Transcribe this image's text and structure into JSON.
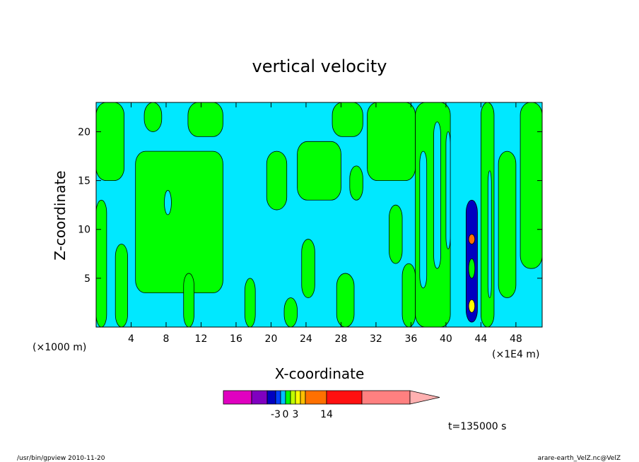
{
  "chart_data": {
    "type": "heatmap",
    "title": "vertical velocity",
    "xlabel": "X-coordinate",
    "ylabel": "Z-coordinate",
    "x_unit_left": "(×1000 m)",
    "x_unit_right": "(×1E4 m)",
    "xlim": [
      0,
      51
    ],
    "ylim": [
      0,
      23
    ],
    "x_ticks": [
      4,
      8,
      12,
      16,
      20,
      24,
      28,
      32,
      36,
      40,
      44,
      48
    ],
    "y_ticks": [
      5,
      10,
      15,
      20
    ],
    "time_label": "t=135000 s",
    "colorbar": {
      "ticks": [
        {
          "label": "-3",
          "index": 3
        },
        {
          "label": "0",
          "index": 5
        },
        {
          "label": "3",
          "index": 7
        },
        {
          "label": "14",
          "index": 10
        }
      ],
      "colors": [
        "#e000c0",
        "#8000c0",
        "#0000c0",
        "#0040ff",
        "#00c0ff",
        "#00ff00",
        "#c0ff00",
        "#ffff00",
        "#ffc000",
        "#ff7000",
        "#ff1010",
        "#ff8080",
        "#ffb0b0"
      ]
    },
    "field_colors": {
      "negative_weak": "#00e8ff",
      "positive_weak": "#00ff00",
      "positive_mid": "#ffff00",
      "positive_strong": "#ff7000",
      "negative_strong": "#0000c0"
    },
    "green_regions": [
      {
        "x0": 0.0,
        "x1": 3.2,
        "z0": 15.0,
        "z1": 23.0
      },
      {
        "x0": 0.0,
        "x1": 1.2,
        "z0": 0.0,
        "z1": 13.0
      },
      {
        "x0": 2.2,
        "x1": 3.6,
        "z0": 0.0,
        "z1": 8.5
      },
      {
        "x0": 5.5,
        "x1": 7.5,
        "z0": 20.0,
        "z1": 23.0
      },
      {
        "x0": 10.5,
        "x1": 14.5,
        "z0": 19.5,
        "z1": 23.0
      },
      {
        "x0": 4.5,
        "x1": 14.5,
        "z0": 3.5,
        "z1": 18.0
      },
      {
        "x0": 10.0,
        "x1": 11.2,
        "z0": 0.0,
        "z1": 5.5
      },
      {
        "x0": 17.0,
        "x1": 18.2,
        "z0": 0.0,
        "z1": 5.0
      },
      {
        "x0": 19.5,
        "x1": 21.8,
        "z0": 12.0,
        "z1": 18.0
      },
      {
        "x0": 21.5,
        "x1": 23.0,
        "z0": 0.0,
        "z1": 3.0
      },
      {
        "x0": 23.0,
        "x1": 28.0,
        "z0": 13.0,
        "z1": 19.0
      },
      {
        "x0": 23.5,
        "x1": 25.0,
        "z0": 3.0,
        "z1": 9.0
      },
      {
        "x0": 27.0,
        "x1": 30.5,
        "z0": 19.5,
        "z1": 23.0
      },
      {
        "x0": 29.0,
        "x1": 30.5,
        "z0": 13.0,
        "z1": 16.5
      },
      {
        "x0": 27.5,
        "x1": 29.5,
        "z0": 0.0,
        "z1": 5.5
      },
      {
        "x0": 31.0,
        "x1": 36.5,
        "z0": 15.0,
        "z1": 23.0
      },
      {
        "x0": 33.5,
        "x1": 35.0,
        "z0": 6.5,
        "z1": 12.5
      },
      {
        "x0": 35.0,
        "x1": 36.5,
        "z0": 0.0,
        "z1": 6.5
      },
      {
        "x0": 36.5,
        "x1": 40.5,
        "z0": 0.0,
        "z1": 23.0
      },
      {
        "x0": 44.0,
        "x1": 45.5,
        "z0": 0.0,
        "z1": 23.0
      },
      {
        "x0": 46.0,
        "x1": 48.0,
        "z0": 3.0,
        "z1": 18.0
      },
      {
        "x0": 48.5,
        "x1": 51.0,
        "z0": 6.0,
        "z1": 23.0
      }
    ],
    "cyan_holes": [
      {
        "x0": 7.8,
        "x1": 8.6,
        "z0": 11.5,
        "z1": 14.0
      },
      {
        "x0": 37.0,
        "x1": 37.8,
        "z0": 4.0,
        "z1": 18.0
      },
      {
        "x0": 38.6,
        "x1": 39.4,
        "z0": 6.0,
        "z1": 21.0
      },
      {
        "x0": 40.0,
        "x1": 40.5,
        "z0": 8.0,
        "z1": 20.0
      },
      {
        "x0": 44.8,
        "x1": 45.2,
        "z0": 3.0,
        "z1": 16.0
      }
    ],
    "updraft_core": [
      {
        "x0": 42.3,
        "x1": 43.6,
        "z0": 0.5,
        "z1": 13.0,
        "level": "negative_strong"
      },
      {
        "x0": 42.6,
        "x1": 43.3,
        "z0": 8.5,
        "z1": 9.5,
        "level": "positive_strong"
      },
      {
        "x0": 42.6,
        "x1": 43.3,
        "z0": 1.5,
        "z1": 2.8,
        "level": "positive_mid"
      },
      {
        "x0": 42.6,
        "x1": 43.3,
        "z0": 5.0,
        "z1": 7.0,
        "level": "positive_weak"
      }
    ]
  },
  "footer": {
    "left": "/usr/bin/gpview   2010-11-20",
    "right": "arare-earth_VelZ.nc@VelZ"
  }
}
